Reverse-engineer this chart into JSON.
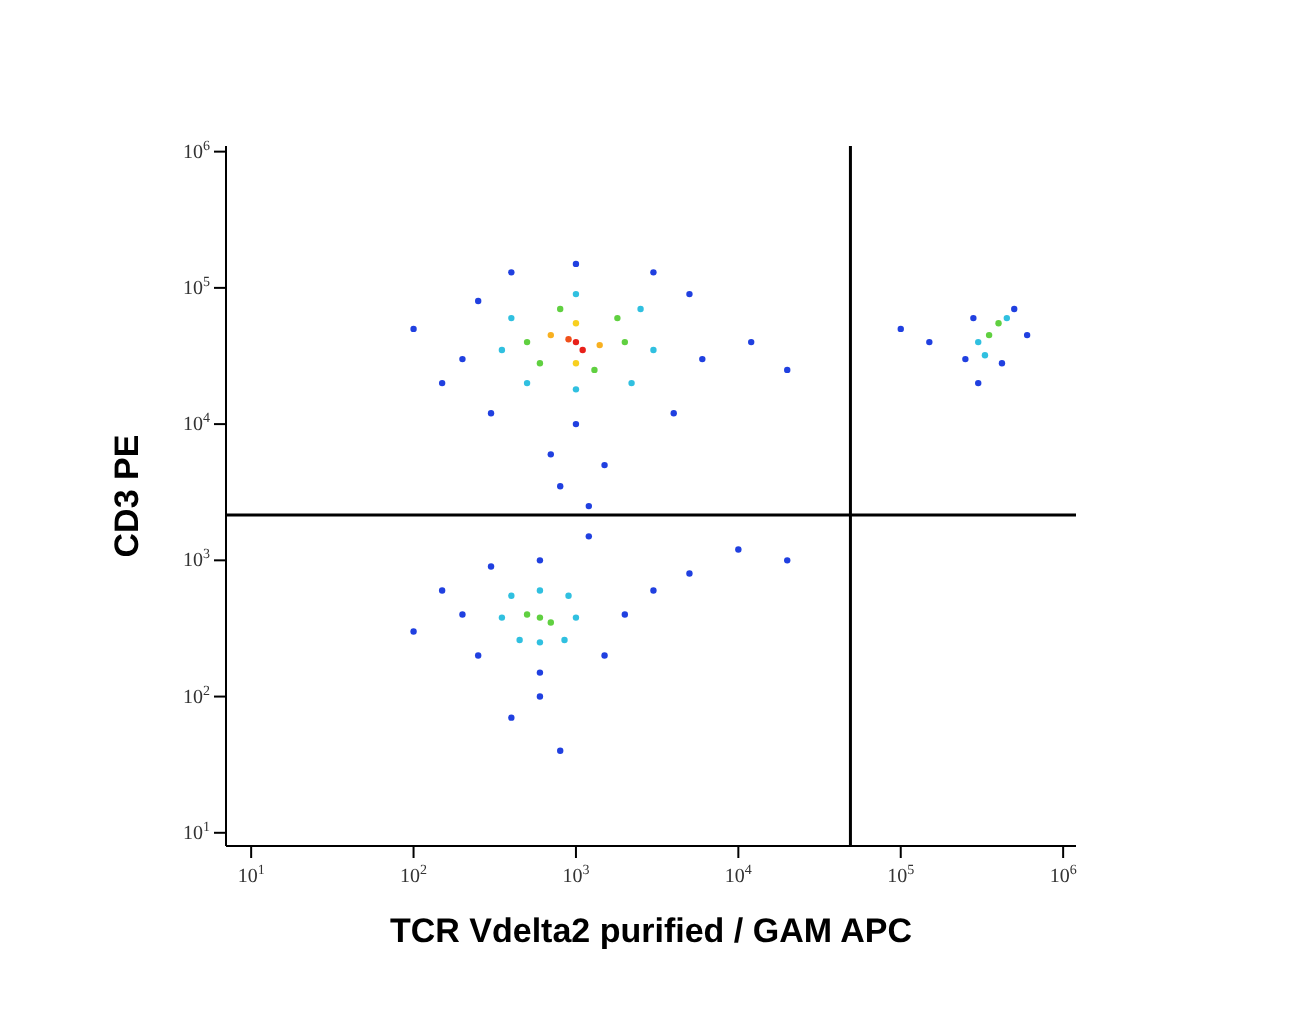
{
  "chart_data": {
    "type": "scatter",
    "xlabel": "TCR Vdelta2 purified / GAM APC",
    "ylabel": "CD3 PE",
    "log": "xy",
    "grid": false,
    "marker": "circle",
    "xlim": [
      7,
      1200000
    ],
    "ylim": [
      8,
      1100000
    ],
    "xticks": [
      {
        "value": 10,
        "label": "10$^{1}$"
      },
      {
        "value": 100,
        "label": "10$^{2}$"
      },
      {
        "value": 1000,
        "label": "10$^{3}$"
      },
      {
        "value": 10000,
        "label": "10$^{4}$"
      },
      {
        "value": 100000,
        "label": "10$^{5}$"
      },
      {
        "value": 1000000,
        "label": "10$^{6}$"
      }
    ],
    "yticks": [
      {
        "value": 10,
        "label": "10$^{1}$"
      },
      {
        "value": 100,
        "label": "10$^{2}$"
      },
      {
        "value": 1000,
        "label": "10$^{3}$"
      },
      {
        "value": 10000,
        "label": "10$^{4}$"
      },
      {
        "value": 100000,
        "label": "10$^{5}$"
      },
      {
        "value": 1000000,
        "label": "10$^{6}$"
      }
    ],
    "ref_lines": [
      {
        "axis": "x",
        "value": 49000,
        "color": "#000000"
      },
      {
        "axis": "y",
        "value": 2150,
        "color": "#000000"
      }
    ],
    "series": [
      {
        "x": [
          1000,
          1100,
          900,
          700,
          1400,
          1000,
          1000,
          500,
          2000,
          800,
          1300,
          600,
          1800,
          350,
          3000,
          1000,
          1000,
          400,
          2500,
          500,
          2200,
          200,
          6000,
          1000,
          1000,
          250,
          5000,
          300,
          4000,
          150,
          12000,
          700,
          1500,
          20000,
          100,
          3000,
          400,
          800,
          1200,
          600,
          700,
          500,
          350,
          1000,
          600,
          600,
          400,
          900,
          450,
          850,
          200,
          2000,
          600,
          600,
          150,
          3000,
          250,
          1500,
          5000,
          10000,
          100,
          600,
          300,
          1200,
          400,
          800,
          20000,
          350000,
          400000,
          300000,
          450000,
          330000,
          250000,
          500000,
          280000,
          420000,
          150000,
          600000,
          300000,
          100000
        ],
        "values": [
          40000,
          35000,
          42000,
          45000,
          38000,
          55000,
          28000,
          40000,
          40000,
          70000,
          25000,
          28000,
          60000,
          35000,
          35000,
          90000,
          18000,
          60000,
          70000,
          20000,
          20000,
          30000,
          30000,
          150000,
          10000,
          80000,
          90000,
          12000,
          12000,
          20000,
          40000,
          6000,
          5000,
          25000,
          50000,
          130000,
          130000,
          3500,
          2500,
          380,
          350,
          400,
          380,
          380,
          600,
          250,
          550,
          550,
          260,
          260,
          400,
          400,
          1000,
          150,
          600,
          600,
          200,
          200,
          800,
          1200,
          300,
          100,
          900,
          1500,
          70,
          40,
          1000,
          45000,
          55000,
          40000,
          60000,
          32000,
          30000,
          70000,
          60000,
          28000,
          40000,
          45000,
          20000,
          50000
        ],
        "colors": [
          "#e8201a",
          "#e8201a",
          "#f0501a",
          "#f8b020",
          "#f8b020",
          "#f8d020",
          "#f8d020",
          "#60d040",
          "#60d040",
          "#60d040",
          "#60d040",
          "#60d040",
          "#60d040",
          "#30c0e0",
          "#30c0e0",
          "#30c0e0",
          "#30c0e0",
          "#30c0e0",
          "#30c0e0",
          "#30c0e0",
          "#30c0e0",
          "#2040e0",
          "#2040e0",
          "#2040e0",
          "#2040e0",
          "#2040e0",
          "#2040e0",
          "#2040e0",
          "#2040e0",
          "#2040e0",
          "#2040e0",
          "#2040e0",
          "#2040e0",
          "#2040e0",
          "#2040e0",
          "#2040e0",
          "#2040e0",
          "#2040e0",
          "#2040e0",
          "#60d040",
          "#60d040",
          "#60d040",
          "#30c0e0",
          "#30c0e0",
          "#30c0e0",
          "#30c0e0",
          "#30c0e0",
          "#30c0e0",
          "#30c0e0",
          "#30c0e0",
          "#2040e0",
          "#2040e0",
          "#2040e0",
          "#2040e0",
          "#2040e0",
          "#2040e0",
          "#2040e0",
          "#2040e0",
          "#2040e0",
          "#2040e0",
          "#2040e0",
          "#2040e0",
          "#2040e0",
          "#2040e0",
          "#2040e0",
          "#2040e0",
          "#2040e0",
          "#60d040",
          "#60d040",
          "#30c0e0",
          "#30c0e0",
          "#30c0e0",
          "#2040e0",
          "#2040e0",
          "#2040e0",
          "#2040e0",
          "#2040e0",
          "#2040e0",
          "#2040e0",
          "#2040e0"
        ]
      }
    ]
  }
}
